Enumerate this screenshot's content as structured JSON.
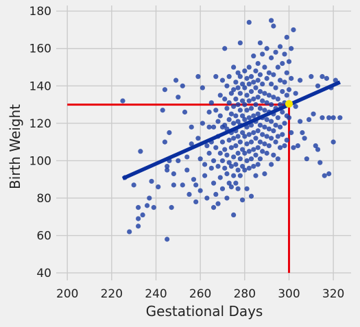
{
  "chart_data": {
    "type": "scatter",
    "title": "",
    "xlabel": "Gestational Days",
    "ylabel": "Birth Weight",
    "xlim": [
      195,
      328
    ],
    "ylim": [
      36,
      183
    ],
    "xticks": [
      200,
      220,
      240,
      260,
      280,
      300,
      320
    ],
    "yticks": [
      40,
      60,
      80,
      100,
      120,
      140,
      160,
      180
    ],
    "grid": true,
    "colors": {
      "points": "#1f3fa3",
      "fit_line": "#0a2f9e",
      "marker_lines": "#e8000b",
      "highlight": "#f5e400",
      "background": "#f0f0f0",
      "grid": "#cbcbcb"
    },
    "fit_line": {
      "x": [
        225,
        323
      ],
      "y": [
        90.5,
        142
      ]
    },
    "highlight": {
      "x": 300,
      "y": 130.4
    },
    "reference_lines": {
      "horizontal_y": 130,
      "horizontal_x_from": 200,
      "vertical_x": 300,
      "vertical_y_from": 40
    },
    "points": [
      [
        225,
        132
      ],
      [
        226,
        91
      ],
      [
        228,
        62
      ],
      [
        230,
        87
      ],
      [
        232,
        75
      ],
      [
        232,
        69
      ],
      [
        232,
        65
      ],
      [
        233,
        105
      ],
      [
        234,
        71
      ],
      [
        236,
        76
      ],
      [
        237,
        80
      ],
      [
        238,
        89
      ],
      [
        239,
        75
      ],
      [
        241,
        86
      ],
      [
        243,
        127
      ],
      [
        244,
        138
      ],
      [
        244,
        110
      ],
      [
        245,
        95
      ],
      [
        245,
        97
      ],
      [
        245,
        58
      ],
      [
        246,
        115
      ],
      [
        246,
        100
      ],
      [
        247,
        75
      ],
      [
        248,
        93
      ],
      [
        248,
        87
      ],
      [
        249,
        143
      ],
      [
        250,
        134
      ],
      [
        250,
        100
      ],
      [
        252,
        140
      ],
      [
        252,
        87
      ],
      [
        253,
        126
      ],
      [
        254,
        102
      ],
      [
        254,
        95
      ],
      [
        255,
        82
      ],
      [
        256,
        118
      ],
      [
        256,
        109
      ],
      [
        257,
        90
      ],
      [
        258,
        87
      ],
      [
        258,
        78
      ],
      [
        259,
        145
      ],
      [
        259,
        112
      ],
      [
        260,
        84
      ],
      [
        260,
        101
      ],
      [
        261,
        139
      ],
      [
        261,
        120
      ],
      [
        262,
        98
      ],
      [
        262,
        92
      ],
      [
        263,
        108
      ],
      [
        263,
        80
      ],
      [
        264,
        126
      ],
      [
        264,
        118
      ],
      [
        264,
        104
      ],
      [
        265,
        131
      ],
      [
        265,
        110
      ],
      [
        265,
        96
      ],
      [
        266,
        118
      ],
      [
        266,
        100
      ],
      [
        266,
        88
      ],
      [
        266,
        75
      ],
      [
        267,
        145
      ],
      [
        267,
        127
      ],
      [
        267,
        107
      ],
      [
        267,
        82
      ],
      [
        268,
        121
      ],
      [
        268,
        113
      ],
      [
        268,
        97
      ],
      [
        268,
        77
      ],
      [
        269,
        135
      ],
      [
        269,
        124
      ],
      [
        269,
        104
      ],
      [
        269,
        91
      ],
      [
        270,
        143
      ],
      [
        270,
        118
      ],
      [
        270,
        110
      ],
      [
        270,
        100
      ],
      [
        270,
        85
      ],
      [
        271,
        160
      ],
      [
        271,
        133
      ],
      [
        271,
        119
      ],
      [
        271,
        106
      ],
      [
        271,
        96
      ],
      [
        272,
        140
      ],
      [
        272,
        128
      ],
      [
        272,
        117
      ],
      [
        272,
        103
      ],
      [
        272,
        93
      ],
      [
        272,
        80
      ],
      [
        273,
        145
      ],
      [
        273,
        131
      ],
      [
        273,
        122
      ],
      [
        273,
        111
      ],
      [
        273,
        99
      ],
      [
        273,
        88
      ],
      [
        274,
        136
      ],
      [
        274,
        125
      ],
      [
        274,
        115
      ],
      [
        274,
        107
      ],
      [
        274,
        97
      ],
      [
        274,
        86
      ],
      [
        275,
        150
      ],
      [
        275,
        138
      ],
      [
        275,
        129
      ],
      [
        275,
        120
      ],
      [
        275,
        112
      ],
      [
        275,
        102
      ],
      [
        275,
        92
      ],
      [
        275,
        71
      ],
      [
        276,
        142
      ],
      [
        276,
        133
      ],
      [
        276,
        124
      ],
      [
        276,
        116
      ],
      [
        276,
        108
      ],
      [
        276,
        98
      ],
      [
        276,
        88
      ],
      [
        277,
        147
      ],
      [
        277,
        139
      ],
      [
        277,
        130
      ],
      [
        277,
        121
      ],
      [
        277,
        113
      ],
      [
        277,
        104
      ],
      [
        277,
        95
      ],
      [
        277,
        85
      ],
      [
        278,
        163
      ],
      [
        278,
        145
      ],
      [
        278,
        136
      ],
      [
        278,
        127
      ],
      [
        278,
        119
      ],
      [
        278,
        110
      ],
      [
        278,
        101
      ],
      [
        278,
        92
      ],
      [
        279,
        141
      ],
      [
        279,
        132
      ],
      [
        279,
        124
      ],
      [
        279,
        115
      ],
      [
        279,
        106
      ],
      [
        279,
        97
      ],
      [
        279,
        79
      ],
      [
        280,
        148
      ],
      [
        280,
        139
      ],
      [
        280,
        130
      ],
      [
        280,
        122
      ],
      [
        280,
        113
      ],
      [
        280,
        104
      ],
      [
        280,
        95
      ],
      [
        281,
        144
      ],
      [
        281,
        135
      ],
      [
        281,
        127
      ],
      [
        281,
        118
      ],
      [
        281,
        109
      ],
      [
        281,
        100
      ],
      [
        281,
        85
      ],
      [
        282,
        174
      ],
      [
        282,
        150
      ],
      [
        282,
        141
      ],
      [
        282,
        132
      ],
      [
        282,
        123
      ],
      [
        282,
        114
      ],
      [
        282,
        105
      ],
      [
        282,
        96
      ],
      [
        283,
        145
      ],
      [
        283,
        137
      ],
      [
        283,
        128
      ],
      [
        283,
        119
      ],
      [
        283,
        110
      ],
      [
        283,
        101
      ],
      [
        283,
        81
      ],
      [
        284,
        156
      ],
      [
        284,
        142
      ],
      [
        284,
        133
      ],
      [
        284,
        124
      ],
      [
        284,
        115
      ],
      [
        284,
        106
      ],
      [
        284,
        97
      ],
      [
        285,
        148
      ],
      [
        285,
        139
      ],
      [
        285,
        130
      ],
      [
        285,
        121
      ],
      [
        285,
        112
      ],
      [
        285,
        103
      ],
      [
        285,
        92
      ],
      [
        286,
        152
      ],
      [
        286,
        143
      ],
      [
        286,
        134
      ],
      [
        286,
        125
      ],
      [
        286,
        116
      ],
      [
        286,
        107
      ],
      [
        286,
        98
      ],
      [
        287,
        163
      ],
      [
        287,
        146
      ],
      [
        287,
        137
      ],
      [
        287,
        128
      ],
      [
        287,
        119
      ],
      [
        287,
        110
      ],
      [
        287,
        101
      ],
      [
        288,
        157
      ],
      [
        288,
        141
      ],
      [
        288,
        132
      ],
      [
        288,
        123
      ],
      [
        288,
        114
      ],
      [
        288,
        105
      ],
      [
        289,
        150
      ],
      [
        289,
        136
      ],
      [
        289,
        127
      ],
      [
        289,
        118
      ],
      [
        289,
        109
      ],
      [
        289,
        93
      ],
      [
        290,
        160
      ],
      [
        290,
        144
      ],
      [
        290,
        131
      ],
      [
        290,
        122
      ],
      [
        290,
        113
      ],
      [
        290,
        104
      ],
      [
        291,
        147
      ],
      [
        291,
        135
      ],
      [
        291,
        126
      ],
      [
        291,
        117
      ],
      [
        291,
        108
      ],
      [
        292,
        175
      ],
      [
        292,
        155
      ],
      [
        292,
        141
      ],
      [
        292,
        130
      ],
      [
        292,
        121
      ],
      [
        292,
        112
      ],
      [
        292,
        98
      ],
      [
        293,
        172
      ],
      [
        293,
        146
      ],
      [
        293,
        134
      ],
      [
        293,
        125
      ],
      [
        293,
        116
      ],
      [
        293,
        103
      ],
      [
        294,
        158
      ],
      [
        294,
        139
      ],
      [
        294,
        128
      ],
      [
        294,
        119
      ],
      [
        294,
        110
      ],
      [
        295,
        150
      ],
      [
        295,
        133
      ],
      [
        295,
        123
      ],
      [
        295,
        113
      ],
      [
        295,
        101
      ],
      [
        296,
        161
      ],
      [
        296,
        143
      ],
      [
        296,
        130
      ],
      [
        296,
        118
      ],
      [
        296,
        107
      ],
      [
        297,
        152
      ],
      [
        297,
        137
      ],
      [
        297,
        126
      ],
      [
        297,
        114
      ],
      [
        298,
        157
      ],
      [
        298,
        142
      ],
      [
        298,
        131
      ],
      [
        298,
        120
      ],
      [
        298,
        108
      ],
      [
        299,
        166
      ],
      [
        299,
        147
      ],
      [
        299,
        135
      ],
      [
        299,
        124
      ],
      [
        299,
        111
      ],
      [
        300,
        153
      ],
      [
        300,
        138
      ],
      [
        300,
        123
      ],
      [
        301,
        160
      ],
      [
        301,
        144
      ],
      [
        301,
        115
      ],
      [
        302,
        170
      ],
      [
        302,
        107
      ],
      [
        303,
        136
      ],
      [
        303,
        129
      ],
      [
        304,
        108
      ],
      [
        305,
        143
      ],
      [
        305,
        121
      ],
      [
        306,
        115
      ],
      [
        307,
        112
      ],
      [
        308,
        101
      ],
      [
        309,
        122
      ],
      [
        310,
        145
      ],
      [
        311,
        125
      ],
      [
        312,
        108
      ],
      [
        313,
        106
      ],
      [
        313,
        140
      ],
      [
        314,
        99
      ],
      [
        315,
        145
      ],
      [
        315,
        123
      ],
      [
        316,
        92
      ],
      [
        317,
        144
      ],
      [
        318,
        123
      ],
      [
        318,
        93
      ],
      [
        319,
        139
      ],
      [
        320,
        123
      ],
      [
        320,
        110
      ],
      [
        321,
        143
      ],
      [
        323,
        123
      ]
    ]
  }
}
